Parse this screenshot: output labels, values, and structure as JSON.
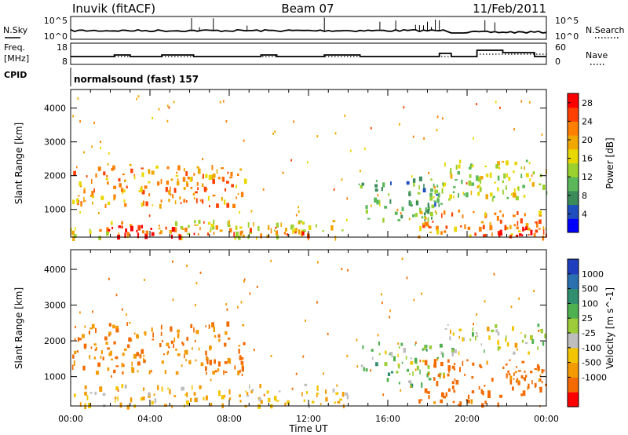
{
  "header": {
    "station": "Inuvik (fitACF)",
    "beam": "Beam 07",
    "date": "11/Feb/2011"
  },
  "summary_panels": {
    "nsky_label": "N.Sky",
    "nsearch_label": "N.Search",
    "noise_ticks": [
      "10^5",
      "10^0"
    ],
    "noise_ticks_right": [
      "10^5",
      "10^0"
    ],
    "freq_label_line1": "Freq.",
    "freq_label_line2": "[MHz]",
    "freq_ticks": [
      "18",
      "8"
    ],
    "nave_label": "Nave",
    "nave_ticks": [
      "60",
      "0"
    ],
    "cpid_label": "CPID",
    "cpid_text": "normalsound (fast) 157"
  },
  "colors": {
    "power_scale": [
      "#0000ff",
      "#1f4fbf",
      "#3a8a5a",
      "#5ab85a",
      "#9bd12e",
      "#e8d800",
      "#f0a800",
      "#ff7f00",
      "#ff4000",
      "#ff0000"
    ],
    "velocity_scale": [
      "#1f3fbf",
      "#2a6fb0",
      "#2f8f6f",
      "#4fb04f",
      "#9ccc3a",
      "#bebebe",
      "#f3c400",
      "#f39a00",
      "#f36a00",
      "#ff0000"
    ]
  },
  "chart_data": [
    {
      "type": "heatmap",
      "panel": "power",
      "xlabel": "Time UT",
      "ylabel": "Slant Range [km]",
      "x_ticks": [
        "00:00",
        "04:00",
        "08:00",
        "12:00",
        "16:00",
        "20:00",
        "00:00"
      ],
      "y_ticks": [
        1000,
        2000,
        3000,
        4000
      ],
      "xlim_hours": [
        0,
        24
      ],
      "ylim_km": [
        180,
        4550
      ],
      "colorbar_label": "Power [dB]",
      "colorbar_ticks": [
        4,
        8,
        12,
        16,
        20,
        24,
        28
      ],
      "clim": [
        0,
        30
      ],
      "regions": [
        {
          "t0": 0.0,
          "t1": 8.8,
          "r0": 1150,
          "r1": 2350,
          "level": 21
        },
        {
          "t0": 0.0,
          "t1": 14.0,
          "r0": 200,
          "r1": 700,
          "level": 17
        },
        {
          "t0": 1.5,
          "t1": 12.5,
          "r0": 250,
          "r1": 550,
          "level": 26
        },
        {
          "t0": 14.5,
          "t1": 18.8,
          "r0": 700,
          "r1": 2000,
          "level": 10
        },
        {
          "t0": 18.7,
          "t1": 24.0,
          "r0": 1300,
          "r1": 2500,
          "level": 15
        },
        {
          "t0": 17.5,
          "t1": 24.0,
          "r0": 200,
          "r1": 1000,
          "level": 22
        },
        {
          "t0": 20.5,
          "t1": 24.0,
          "r0": 250,
          "r1": 600,
          "level": 28
        }
      ]
    },
    {
      "type": "heatmap",
      "panel": "velocity",
      "xlabel": "Time UT",
      "ylabel": "Slant Range [km]",
      "x_ticks": [
        "00:00",
        "04:00",
        "08:00",
        "12:00",
        "16:00",
        "20:00",
        "00:00"
      ],
      "y_ticks": [
        1000,
        2000,
        3000,
        4000
      ],
      "xlim_hours": [
        0,
        24
      ],
      "ylim_km": [
        180,
        4550
      ],
      "colorbar_label": "Velocity [m s^-1]",
      "colorbar_ticks": [
        "1000",
        "500",
        "100",
        "25",
        "-25",
        "-100",
        "-500",
        "-1000"
      ],
      "regions": [
        {
          "t0": 0.0,
          "t1": 8.8,
          "r0": 1150,
          "r1": 2550,
          "vel": -300
        },
        {
          "t0": 0.0,
          "t1": 14.0,
          "r0": 200,
          "r1": 800,
          "vel": -100
        },
        {
          "t0": 14.5,
          "t1": 18.8,
          "r0": 800,
          "r1": 2000,
          "vel": 80
        },
        {
          "t0": 18.7,
          "t1": 24.0,
          "r0": 1700,
          "r1": 2500,
          "vel": 0
        },
        {
          "t0": 17.5,
          "t1": 24.0,
          "r0": 200,
          "r1": 1500,
          "vel": -400
        }
      ]
    }
  ]
}
